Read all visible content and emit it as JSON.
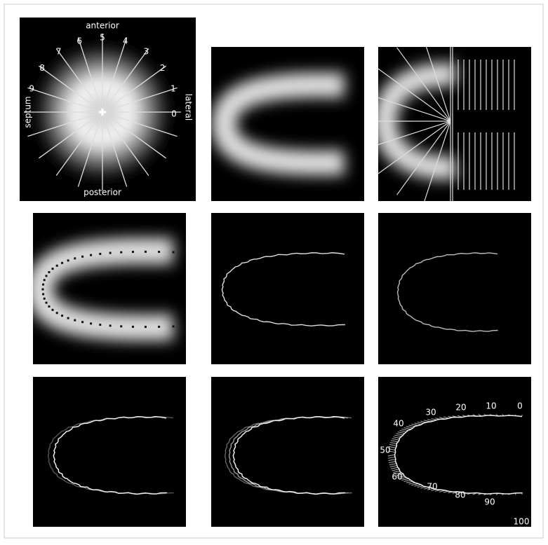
{
  "orientation_labels": {
    "anterior": "anterior",
    "posterior": "posterior",
    "septum": "septum",
    "lateral": "lateral"
  },
  "sector_labels": [
    0,
    1,
    2,
    3,
    4,
    5,
    6,
    7,
    8,
    9
  ],
  "profile_labels": [
    0,
    10,
    20,
    30,
    40,
    50,
    60,
    70,
    80,
    90,
    100
  ]
}
